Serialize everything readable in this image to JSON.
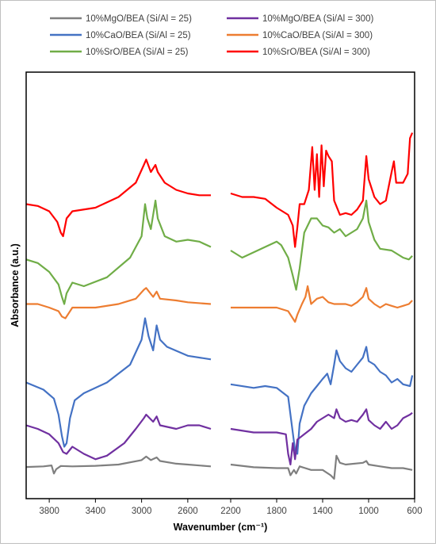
{
  "chart_data": {
    "type": "line",
    "xlabel": "Wavenumber (cm⁻¹)",
    "ylabel": "Absorbance (a.u.)",
    "x_reversed": true,
    "x_ticks": [
      3800,
      3400,
      3000,
      2600,
      2200,
      1800,
      1400,
      1000,
      600
    ],
    "x_tick_labels": [
      "3800",
      "3400",
      "3000",
      "2600",
      "2200",
      "1800",
      "1400",
      "1000",
      "600"
    ],
    "xlim": [
      4000,
      600
    ],
    "axis_break": [
      2400,
      2200
    ],
    "y_tick_labels": false,
    "grid": false,
    "legend": "top, two columns",
    "series": [
      {
        "name": "10%MgO/BEA (Si/Al = 25)",
        "color": "#7f7f7f",
        "points": [
          [
            4000,
            0.6
          ],
          [
            3850,
            1.0
          ],
          [
            3780,
            1.5
          ],
          [
            3760,
            -3.0
          ],
          [
            3740,
            -0.6
          ],
          [
            3700,
            1.2
          ],
          [
            3600,
            1.0
          ],
          [
            3400,
            1.3
          ],
          [
            3200,
            2.0
          ],
          [
            3000,
            4.5
          ],
          [
            2960,
            6.5
          ],
          [
            2920,
            4.5
          ],
          [
            2870,
            6.0
          ],
          [
            2840,
            4.0
          ],
          [
            2700,
            2.5
          ],
          [
            2600,
            2.0
          ],
          [
            2400,
            1.0
          ],
          [
            2200,
            2.0
          ],
          [
            2000,
            0.5
          ],
          [
            1800,
            0.0
          ],
          [
            1700,
            0.0
          ],
          [
            1680,
            -4.0
          ],
          [
            1650,
            -1.0
          ],
          [
            1630,
            -3.0
          ],
          [
            1600,
            1.0
          ],
          [
            1500,
            -1.0
          ],
          [
            1400,
            -1.0
          ],
          [
            1330,
            -4.0
          ],
          [
            1300,
            -6.0
          ],
          [
            1280,
            7.0
          ],
          [
            1250,
            3.0
          ],
          [
            1200,
            2.0
          ],
          [
            1050,
            3.0
          ],
          [
            1020,
            4.0
          ],
          [
            1000,
            2.0
          ],
          [
            900,
            1.0
          ],
          [
            800,
            0.0
          ],
          [
            700,
            0.0
          ],
          [
            620,
            -1.0
          ]
        ]
      },
      {
        "name": "10%CaO/BEA (Si/Al = 25)",
        "color": "#4472c4",
        "points": [
          [
            4000,
            48.0
          ],
          [
            3850,
            44.0
          ],
          [
            3760,
            39.0
          ],
          [
            3720,
            30.0
          ],
          [
            3690,
            18.0
          ],
          [
            3670,
            12.0
          ],
          [
            3650,
            14.0
          ],
          [
            3620,
            28.0
          ],
          [
            3580,
            38.0
          ],
          [
            3500,
            42.0
          ],
          [
            3300,
            48.0
          ],
          [
            3100,
            58.0
          ],
          [
            3000,
            72.0
          ],
          [
            2970,
            84.0
          ],
          [
            2940,
            74.0
          ],
          [
            2900,
            66.0
          ],
          [
            2870,
            80.0
          ],
          [
            2840,
            72.0
          ],
          [
            2780,
            68.0
          ],
          [
            2600,
            63.0
          ],
          [
            2400,
            61.0
          ],
          [
            2200,
            47.0
          ],
          [
            2000,
            45.0
          ],
          [
            1900,
            46.0
          ],
          [
            1800,
            45.0
          ],
          [
            1700,
            40.0
          ],
          [
            1660,
            20.0
          ],
          [
            1640,
            10.0
          ],
          [
            1620,
            8.0
          ],
          [
            1600,
            25.0
          ],
          [
            1560,
            35.0
          ],
          [
            1500,
            42.0
          ],
          [
            1450,
            46.0
          ],
          [
            1400,
            50.0
          ],
          [
            1360,
            53.0
          ],
          [
            1330,
            47.0
          ],
          [
            1300,
            58.0
          ],
          [
            1280,
            66.0
          ],
          [
            1250,
            60.0
          ],
          [
            1200,
            56.0
          ],
          [
            1150,
            54.0
          ],
          [
            1100,
            58.0
          ],
          [
            1050,
            62.0
          ],
          [
            1020,
            68.0
          ],
          [
            1000,
            60.0
          ],
          [
            950,
            58.0
          ],
          [
            900,
            54.0
          ],
          [
            850,
            52.0
          ],
          [
            800,
            48.0
          ],
          [
            750,
            50.0
          ],
          [
            700,
            47.0
          ],
          [
            640,
            46.0
          ],
          [
            620,
            52.0
          ]
        ]
      },
      {
        "name": "10%SrO/BEA (Si/Al = 25)",
        "color": "#70ad47",
        "points": [
          [
            4000,
            117.0
          ],
          [
            3900,
            115.0
          ],
          [
            3800,
            110.0
          ],
          [
            3720,
            103.0
          ],
          [
            3690,
            96.0
          ],
          [
            3670,
            92.0
          ],
          [
            3650,
            98.0
          ],
          [
            3600,
            104.0
          ],
          [
            3500,
            102.0
          ],
          [
            3300,
            107.0
          ],
          [
            3100,
            118.0
          ],
          [
            3000,
            130.0
          ],
          [
            2970,
            148.0
          ],
          [
            2950,
            140.0
          ],
          [
            2920,
            134.0
          ],
          [
            2880,
            150.0
          ],
          [
            2860,
            140.0
          ],
          [
            2800,
            130.0
          ],
          [
            2700,
            127.0
          ],
          [
            2600,
            128.0
          ],
          [
            2500,
            127.0
          ],
          [
            2400,
            124.0
          ],
          [
            2200,
            122.0
          ],
          [
            2100,
            118.0
          ],
          [
            2000,
            121.0
          ],
          [
            1900,
            124.0
          ],
          [
            1800,
            127.0
          ],
          [
            1760,
            125.0
          ],
          [
            1700,
            118.0
          ],
          [
            1660,
            108.0
          ],
          [
            1630,
            100.0
          ],
          [
            1600,
            112.0
          ],
          [
            1560,
            132.0
          ],
          [
            1500,
            140.0
          ],
          [
            1450,
            140.0
          ],
          [
            1400,
            136.0
          ],
          [
            1350,
            135.0
          ],
          [
            1300,
            132.0
          ],
          [
            1250,
            134.0
          ],
          [
            1200,
            130.0
          ],
          [
            1100,
            134.0
          ],
          [
            1050,
            140.0
          ],
          [
            1020,
            150.0
          ],
          [
            1000,
            138.0
          ],
          [
            950,
            128.0
          ],
          [
            900,
            123.0
          ],
          [
            800,
            122.0
          ],
          [
            700,
            118.0
          ],
          [
            650,
            117.0
          ],
          [
            620,
            119.0
          ]
        ]
      },
      {
        "name": "10%MgO/BEA (Si/Al = 300)",
        "color": "#7030a0",
        "points": [
          [
            4000,
            24.0
          ],
          [
            3900,
            22.0
          ],
          [
            3800,
            19.0
          ],
          [
            3720,
            14.0
          ],
          [
            3680,
            9.0
          ],
          [
            3650,
            8.0
          ],
          [
            3600,
            12.0
          ],
          [
            3500,
            8.0
          ],
          [
            3400,
            5.0
          ],
          [
            3300,
            7.0
          ],
          [
            3150,
            14.0
          ],
          [
            3050,
            22.0
          ],
          [
            2980,
            28.0
          ],
          [
            2960,
            30.0
          ],
          [
            2900,
            26.0
          ],
          [
            2870,
            29.0
          ],
          [
            2840,
            24.0
          ],
          [
            2700,
            22.0
          ],
          [
            2600,
            24.0
          ],
          [
            2500,
            24.0
          ],
          [
            2400,
            22.0
          ],
          [
            2200,
            22.0
          ],
          [
            2000,
            20.0
          ],
          [
            1800,
            20.0
          ],
          [
            1720,
            19.0
          ],
          [
            1700,
            8.0
          ],
          [
            1680,
            2.0
          ],
          [
            1660,
            14.0
          ],
          [
            1640,
            5.0
          ],
          [
            1620,
            16.0
          ],
          [
            1580,
            18.0
          ],
          [
            1500,
            22.0
          ],
          [
            1450,
            26.0
          ],
          [
            1400,
            28.0
          ],
          [
            1350,
            30.0
          ],
          [
            1300,
            28.0
          ],
          [
            1280,
            33.0
          ],
          [
            1250,
            28.0
          ],
          [
            1200,
            26.0
          ],
          [
            1150,
            27.0
          ],
          [
            1100,
            26.0
          ],
          [
            1050,
            30.0
          ],
          [
            1020,
            33.0
          ],
          [
            1000,
            27.0
          ],
          [
            950,
            24.0
          ],
          [
            900,
            22.0
          ],
          [
            850,
            26.0
          ],
          [
            800,
            22.0
          ],
          [
            750,
            24.0
          ],
          [
            700,
            28.0
          ],
          [
            640,
            30.0
          ],
          [
            620,
            31.0
          ]
        ]
      },
      {
        "name": "10%CaO/BEA (Si/Al = 300)",
        "color": "#ed7d31",
        "points": [
          [
            4000,
            92.0
          ],
          [
            3900,
            92.0
          ],
          [
            3800,
            90.0
          ],
          [
            3720,
            88.0
          ],
          [
            3690,
            85.0
          ],
          [
            3660,
            84.0
          ],
          [
            3630,
            87.0
          ],
          [
            3600,
            90.0
          ],
          [
            3400,
            90.0
          ],
          [
            3200,
            92.0
          ],
          [
            3050,
            95.0
          ],
          [
            2980,
            100.0
          ],
          [
            2960,
            101.0
          ],
          [
            2900,
            96.0
          ],
          [
            2870,
            99.0
          ],
          [
            2840,
            95.0
          ],
          [
            2700,
            94.0
          ],
          [
            2600,
            93.0
          ],
          [
            2400,
            92.0
          ],
          [
            2200,
            90.0
          ],
          [
            2000,
            90.0
          ],
          [
            1800,
            90.0
          ],
          [
            1700,
            88.0
          ],
          [
            1660,
            84.0
          ],
          [
            1640,
            82.0
          ],
          [
            1620,
            86.0
          ],
          [
            1580,
            92.0
          ],
          [
            1550,
            96.0
          ],
          [
            1530,
            102.0
          ],
          [
            1500,
            92.0
          ],
          [
            1450,
            95.0
          ],
          [
            1400,
            96.0
          ],
          [
            1350,
            93.0
          ],
          [
            1300,
            92.0
          ],
          [
            1250,
            92.0
          ],
          [
            1200,
            92.0
          ],
          [
            1150,
            91.0
          ],
          [
            1100,
            93.0
          ],
          [
            1050,
            96.0
          ],
          [
            1020,
            101.0
          ],
          [
            1000,
            95.0
          ],
          [
            950,
            92.0
          ],
          [
            900,
            90.0
          ],
          [
            850,
            92.0
          ],
          [
            800,
            91.0
          ],
          [
            750,
            90.0
          ],
          [
            700,
            91.0
          ],
          [
            650,
            92.0
          ],
          [
            620,
            94.0
          ]
        ]
      },
      {
        "name": "10%SrO/BEA (Si/Al = 300)",
        "color": "#ff0000",
        "points": [
          [
            4000,
            148.0
          ],
          [
            3900,
            147.0
          ],
          [
            3800,
            144.0
          ],
          [
            3730,
            138.0
          ],
          [
            3700,
            132.0
          ],
          [
            3680,
            130.0
          ],
          [
            3650,
            140.0
          ],
          [
            3600,
            144.0
          ],
          [
            3400,
            146.0
          ],
          [
            3200,
            152.0
          ],
          [
            3050,
            160.0
          ],
          [
            2980,
            170.0
          ],
          [
            2960,
            173.0
          ],
          [
            2920,
            166.0
          ],
          [
            2880,
            170.0
          ],
          [
            2860,
            166.0
          ],
          [
            2800,
            160.0
          ],
          [
            2700,
            156.0
          ],
          [
            2600,
            154.0
          ],
          [
            2500,
            153.0
          ],
          [
            2400,
            153.0
          ],
          [
            2200,
            154.0
          ],
          [
            2100,
            152.0
          ],
          [
            2000,
            152.0
          ],
          [
            1900,
            151.0
          ],
          [
            1800,
            146.0
          ],
          [
            1700,
            142.0
          ],
          [
            1660,
            136.0
          ],
          [
            1640,
            124.0
          ],
          [
            1620,
            135.0
          ],
          [
            1600,
            148.0
          ],
          [
            1560,
            148.0
          ],
          [
            1520,
            156.0
          ],
          [
            1490,
            180.0
          ],
          [
            1470,
            156.0
          ],
          [
            1450,
            176.0
          ],
          [
            1430,
            152.0
          ],
          [
            1410,
            181.0
          ],
          [
            1390,
            158.0
          ],
          [
            1370,
            178.0
          ],
          [
            1350,
            175.0
          ],
          [
            1320,
            172.0
          ],
          [
            1300,
            150.0
          ],
          [
            1250,
            142.0
          ],
          [
            1200,
            143.0
          ],
          [
            1150,
            142.0
          ],
          [
            1100,
            145.0
          ],
          [
            1050,
            150.0
          ],
          [
            1020,
            175.0
          ],
          [
            1000,
            162.0
          ],
          [
            950,
            152.0
          ],
          [
            900,
            148.0
          ],
          [
            850,
            150.0
          ],
          [
            800,
            166.0
          ],
          [
            780,
            172.0
          ],
          [
            760,
            160.0
          ],
          [
            700,
            160.0
          ],
          [
            660,
            165.0
          ],
          [
            640,
            185.0
          ],
          [
            620,
            188.0
          ]
        ]
      }
    ]
  }
}
